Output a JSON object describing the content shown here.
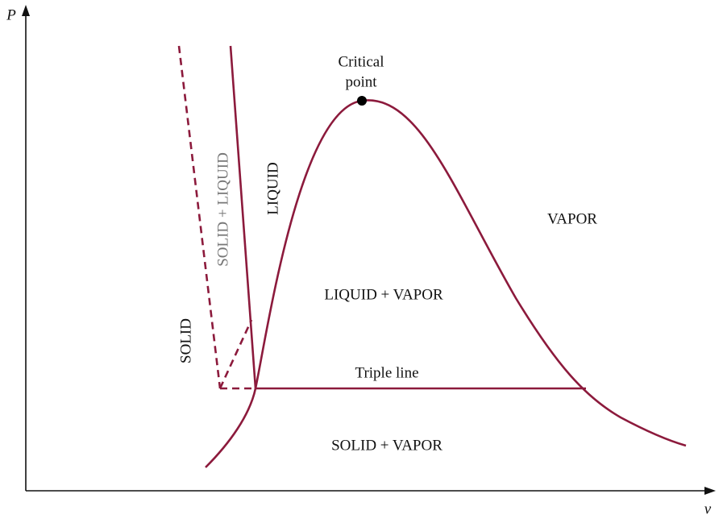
{
  "axes": {
    "y_label": "P",
    "x_label": "v"
  },
  "annotations": {
    "critical_point": [
      "Critical",
      "point"
    ],
    "triple_line": "Triple line"
  },
  "regions": {
    "solid": "SOLID",
    "solid_liquid": "SOLID + LIQUID",
    "liquid": "LIQUID",
    "liquid_vapor": "LIQUID + VAPOR",
    "vapor": "VAPOR",
    "solid_vapor": "SOLID + VAPOR"
  }
}
